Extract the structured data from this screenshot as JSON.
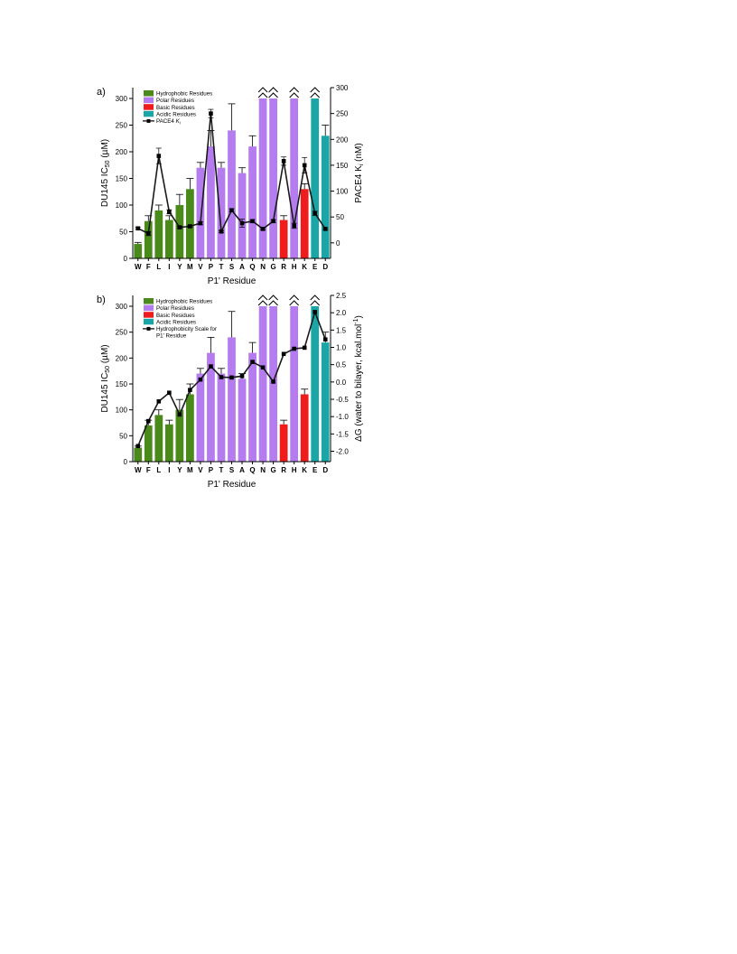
{
  "colors": {
    "hydrophobic": "#4a8a1a",
    "polar": "#b57cf0",
    "basic": "#ee1c1c",
    "acidic": "#1aa6a6",
    "line": "#1a1a1a",
    "axis": "#000000"
  },
  "residues": [
    "W",
    "F",
    "L",
    "I",
    "Y",
    "M",
    "V",
    "P",
    "T",
    "S",
    "A",
    "Q",
    "N",
    "G",
    "R",
    "H",
    "K",
    "E",
    "D"
  ],
  "groups": [
    "hydrophobic",
    "hydrophobic",
    "hydrophobic",
    "hydrophobic",
    "hydrophobic",
    "hydrophobic",
    "polar",
    "polar",
    "polar",
    "polar",
    "polar",
    "polar",
    "polar",
    "polar",
    "basic",
    "polar",
    "basic",
    "acidic",
    "acidic"
  ],
  "clipped_marker": "^",
  "chart_data": [
    {
      "panel_label": "a)",
      "type": "bar",
      "categories": [
        "W",
        "F",
        "L",
        "I",
        "Y",
        "M",
        "V",
        "P",
        "T",
        "S",
        "A",
        "Q",
        "N",
        "G",
        "R",
        "H",
        "K",
        "E",
        "D"
      ],
      "xlabel": "P1' Residue",
      "ylabel": "DU145 IC50 (µM)",
      "ylabel_main": "DU145 IC",
      "ylabel_sub": "50",
      "ylabel_tail": " (µM)",
      "y2label": "PACE4 Ki (nM)",
      "y2label_main": "PACE4 K",
      "y2label_sub": "i",
      "y2label_tail": " (nM)",
      "ylim": [
        0,
        300
      ],
      "yticks": [
        "0",
        "50",
        "100",
        "150",
        "200",
        "250",
        "300"
      ],
      "y2lim": [
        -30,
        300
      ],
      "y2ticks": [
        "0",
        "50",
        "100",
        "150",
        "200",
        "250",
        "300"
      ],
      "y2tick_values": [
        0,
        50,
        100,
        150,
        200,
        250,
        300
      ],
      "legend_position": "top-left",
      "legend": [
        {
          "label": "Hydrophobic Residues",
          "kind": "bar",
          "group": "hydrophobic"
        },
        {
          "label": "Polar Residues",
          "kind": "bar",
          "group": "polar"
        },
        {
          "label": "Basic Residues",
          "kind": "bar",
          "group": "basic"
        },
        {
          "label": "Acidic Residues",
          "kind": "bar",
          "group": "acidic"
        },
        {
          "label": "PACE4 Ki",
          "label_main": "PACE4 ",
          "label_italic": "K",
          "label_sub": "i",
          "kind": "line"
        }
      ],
      "bars": {
        "name": "DU145 IC50",
        "values": [
          27,
          70,
          90,
          72,
          100,
          130,
          170,
          210,
          170,
          240,
          160,
          210,
          300,
          300,
          72,
          300,
          130,
          300,
          230
        ],
        "errors": [
          3,
          10,
          10,
          8,
          20,
          20,
          10,
          30,
          10,
          50,
          10,
          20,
          0,
          0,
          8,
          0,
          10,
          0,
          20
        ],
        "clipped": [
          false,
          false,
          false,
          false,
          false,
          false,
          false,
          false,
          false,
          false,
          false,
          false,
          true,
          true,
          false,
          true,
          false,
          true,
          false
        ]
      },
      "line": {
        "name": "PACE4 Ki",
        "axis": "right",
        "values": [
          28,
          18,
          168,
          60,
          30,
          32,
          38,
          250,
          22,
          63,
          38,
          42,
          27,
          42,
          158,
          33,
          150,
          57,
          27
        ],
        "errors": [
          2,
          4,
          15,
          4,
          2,
          2,
          3,
          8,
          2,
          3,
          8,
          3,
          2,
          3,
          8,
          5,
          15,
          4,
          2
        ]
      }
    },
    {
      "panel_label": "b)",
      "type": "bar",
      "categories": [
        "W",
        "F",
        "L",
        "I",
        "Y",
        "M",
        "V",
        "P",
        "T",
        "S",
        "A",
        "Q",
        "N",
        "G",
        "R",
        "H",
        "K",
        "E",
        "D"
      ],
      "xlabel": "P1' Residue",
      "ylabel": "DU145 IC50 (µM)",
      "ylabel_main": "DU145 IC",
      "ylabel_sub": "50",
      "ylabel_tail": " (µM)",
      "y2label": "ΔG (water to bilayer, kcal.mol-1)",
      "y2label_main": "ΔG (water to bilayer, kcal.mol",
      "y2label_sup": "-1",
      "y2label_tail": ")",
      "ylim": [
        0,
        300
      ],
      "yticks": [
        "0",
        "50",
        "100",
        "150",
        "200",
        "250",
        "300"
      ],
      "y2lim": [
        -2.3,
        2.5
      ],
      "y2ticks": [
        "-2.0",
        "-1.5",
        "-1.0",
        "-0.5",
        "0.0",
        "0.5",
        "1.0",
        "1.5",
        "2.0",
        "2.5"
      ],
      "y2tick_values": [
        -2.0,
        -1.5,
        -1.0,
        -0.5,
        0.0,
        0.5,
        1.0,
        1.5,
        2.0,
        2.5
      ],
      "legend_position": "top-left",
      "legend": [
        {
          "label": "Hydrophobic Residues",
          "kind": "bar",
          "group": "hydrophobic"
        },
        {
          "label": "Polar Residues",
          "kind": "bar",
          "group": "polar"
        },
        {
          "label": "Basic Residues",
          "kind": "bar",
          "group": "basic"
        },
        {
          "label": "Acidic Residues",
          "kind": "bar",
          "group": "acidic"
        },
        {
          "label": "Hydrophobicity Scale for P1' Residue",
          "label_line1": "Hydrophobicity Scale for",
          "label_line2": "P1' Residue",
          "kind": "line"
        }
      ],
      "bars": {
        "name": "DU145 IC50",
        "values": [
          27,
          70,
          90,
          72,
          100,
          130,
          170,
          210,
          170,
          240,
          160,
          210,
          300,
          300,
          72,
          300,
          130,
          300,
          230
        ],
        "errors": [
          3,
          10,
          10,
          8,
          20,
          20,
          10,
          30,
          10,
          50,
          10,
          20,
          0,
          0,
          8,
          0,
          10,
          0,
          20
        ],
        "clipped": [
          false,
          false,
          false,
          false,
          false,
          false,
          false,
          false,
          false,
          false,
          false,
          false,
          true,
          true,
          false,
          true,
          false,
          true,
          false
        ]
      },
      "line": {
        "name": "Hydrophobicity Scale for P1' Residue",
        "axis": "right",
        "values": [
          -1.85,
          -1.13,
          -0.56,
          -0.31,
          -0.94,
          -0.23,
          0.07,
          0.45,
          0.14,
          0.13,
          0.17,
          0.58,
          0.42,
          0.01,
          0.81,
          0.96,
          0.99,
          2.02,
          1.23
        ],
        "errors": [
          0,
          0,
          0,
          0,
          0,
          0,
          0,
          0,
          0,
          0,
          0,
          0,
          0,
          0,
          0,
          0,
          0,
          0,
          0
        ]
      }
    }
  ]
}
